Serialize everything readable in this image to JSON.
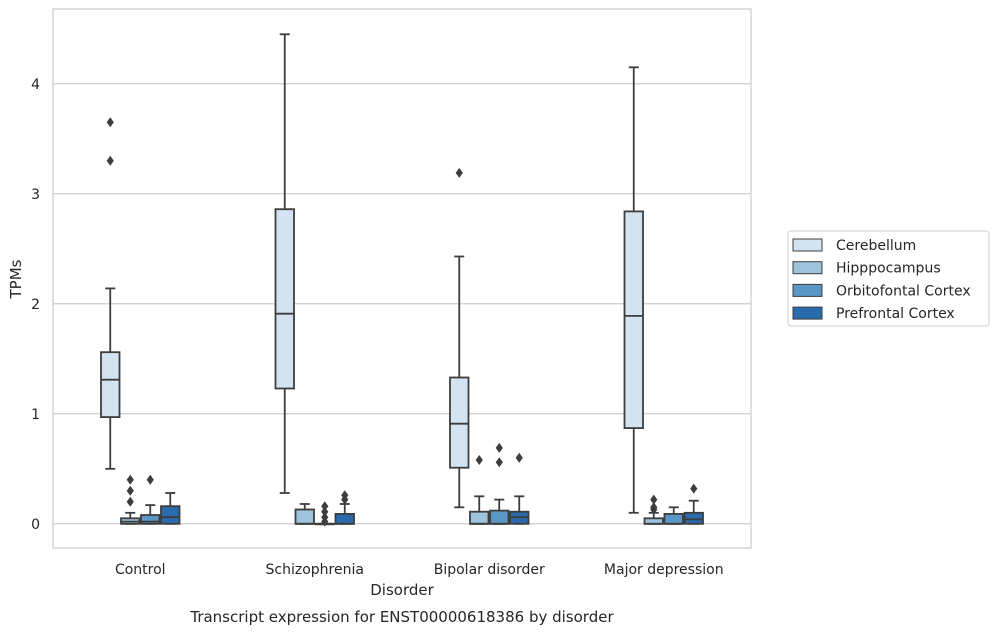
{
  "chart_data": {
    "type": "box",
    "title": "Transcript expression for ENST00000618386 by disorder",
    "xlabel": "Disorder",
    "ylabel": "TPMs",
    "categories": [
      "Control",
      "Schizophrenia",
      "Bipolar disorder",
      "Major depression"
    ],
    "ylim": [
      -0.22,
      4.68
    ],
    "yticks": [
      0,
      1,
      2,
      3,
      4
    ],
    "grid": "y",
    "legend_position": "right",
    "series": [
      {
        "name": "Cerebellum",
        "color": "#d4e3f2",
        "boxes": [
          {
            "whisker_low": 0.5,
            "q1": 0.97,
            "median": 1.31,
            "q3": 1.56,
            "whisker_high": 2.14,
            "outliers": [
              3.3,
              3.65
            ]
          },
          {
            "whisker_low": 0.28,
            "q1": 1.23,
            "median": 1.91,
            "q3": 2.86,
            "whisker_high": 4.45,
            "outliers": []
          },
          {
            "whisker_low": 0.15,
            "q1": 0.51,
            "median": 0.91,
            "q3": 1.33,
            "whisker_high": 2.43,
            "outliers": [
              3.19
            ]
          },
          {
            "whisker_low": 0.1,
            "q1": 0.87,
            "median": 1.89,
            "q3": 2.84,
            "whisker_high": 4.15,
            "outliers": []
          }
        ]
      },
      {
        "name": "Hipppocampus",
        "color": "#9dc3dd",
        "boxes": [
          {
            "whisker_low": 0.0,
            "q1": 0.0,
            "median": 0.02,
            "q3": 0.05,
            "whisker_high": 0.1,
            "outliers": [
              0.2,
              0.3,
              0.4
            ]
          },
          {
            "whisker_low": 0.0,
            "q1": 0.0,
            "median": 0.0,
            "q3": 0.13,
            "whisker_high": 0.18,
            "outliers": []
          },
          {
            "whisker_low": 0.0,
            "q1": 0.0,
            "median": 0.0,
            "q3": 0.11,
            "whisker_high": 0.25,
            "outliers": [
              0.58
            ]
          },
          {
            "whisker_low": 0.0,
            "q1": 0.0,
            "median": 0.0,
            "q3": 0.05,
            "whisker_high": 0.1,
            "outliers": [
              0.13,
              0.15,
              0.22
            ]
          }
        ]
      },
      {
        "name": "Orbitofontal Cortex",
        "color": "#5a97c6",
        "boxes": [
          {
            "whisker_low": 0.0,
            "q1": 0.0,
            "median": 0.02,
            "q3": 0.08,
            "whisker_high": 0.17,
            "outliers": [
              0.4
            ]
          },
          {
            "whisker_low": 0.0,
            "q1": 0.0,
            "median": 0.0,
            "q3": 0.0,
            "whisker_high": 0.0,
            "outliers": [
              0.02,
              0.06,
              0.11,
              0.16
            ]
          },
          {
            "whisker_low": 0.0,
            "q1": 0.0,
            "median": 0.0,
            "q3": 0.12,
            "whisker_high": 0.22,
            "outliers": [
              0.56,
              0.69
            ]
          },
          {
            "whisker_low": 0.0,
            "q1": 0.0,
            "median": 0.0,
            "q3": 0.09,
            "whisker_high": 0.15,
            "outliers": []
          }
        ]
      },
      {
        "name": "Prefrontal Cortex",
        "color": "#2a6bae",
        "boxes": [
          {
            "whisker_low": 0.0,
            "q1": 0.0,
            "median": 0.06,
            "q3": 0.16,
            "whisker_high": 0.28,
            "outliers": []
          },
          {
            "whisker_low": 0.0,
            "q1": 0.0,
            "median": 0.0,
            "q3": 0.09,
            "whisker_high": 0.18,
            "outliers": [
              0.22,
              0.26
            ]
          },
          {
            "whisker_low": 0.0,
            "q1": 0.0,
            "median": 0.06,
            "q3": 0.11,
            "whisker_high": 0.25,
            "outliers": [
              0.6
            ]
          },
          {
            "whisker_low": 0.0,
            "q1": 0.0,
            "median": 0.04,
            "q3": 0.1,
            "whisker_high": 0.21,
            "outliers": [
              0.32
            ]
          }
        ]
      }
    ]
  }
}
